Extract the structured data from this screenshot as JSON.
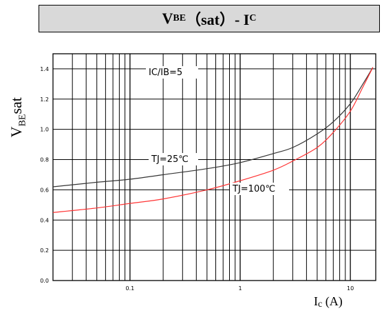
{
  "title": {
    "main": "V",
    "sub1": "BE",
    "mid": "（sat）- I",
    "sub2": "C"
  },
  "chart_data": {
    "type": "line",
    "ylabel": {
      "main": "V",
      "sub": "BE",
      "rest": "sat"
    },
    "xlabel": {
      "main": "I",
      "sub": "c",
      "rest": " (A)"
    },
    "xscale": "log",
    "xlim": [
      0.02,
      17
    ],
    "ylim": [
      0.0,
      1.5
    ],
    "xticks": [
      0.1,
      1,
      10
    ],
    "xtick_labels": [
      "0.1",
      "1",
      "10"
    ],
    "yticks": [
      0.0,
      0.2,
      0.4,
      0.6,
      0.8,
      1.0,
      1.2,
      1.4
    ],
    "ytick_labels": [
      "0.0",
      "0.2",
      "0.4",
      "0.6",
      "0.8",
      "1.0",
      "1.2",
      "1.4"
    ],
    "grid": true,
    "series": [
      {
        "name": "TJ=25℃",
        "color": "#333333",
        "x": [
          0.02,
          0.05,
          0.1,
          0.2,
          0.5,
          1,
          2,
          3,
          5,
          7,
          10,
          13,
          16
        ],
        "y": [
          0.62,
          0.65,
          0.67,
          0.7,
          0.74,
          0.78,
          0.84,
          0.88,
          0.97,
          1.05,
          1.17,
          1.3,
          1.41
        ]
      },
      {
        "name": "TJ=100℃",
        "color": "#ff3333",
        "x": [
          0.02,
          0.05,
          0.1,
          0.2,
          0.5,
          1,
          2,
          3,
          5,
          7,
          10,
          13,
          16
        ],
        "y": [
          0.45,
          0.48,
          0.51,
          0.54,
          0.6,
          0.66,
          0.73,
          0.79,
          0.88,
          0.98,
          1.12,
          1.28,
          1.41
        ]
      }
    ],
    "annotations": [
      "IC/IB=5",
      "TJ=25℃",
      "TJ=100℃"
    ]
  }
}
